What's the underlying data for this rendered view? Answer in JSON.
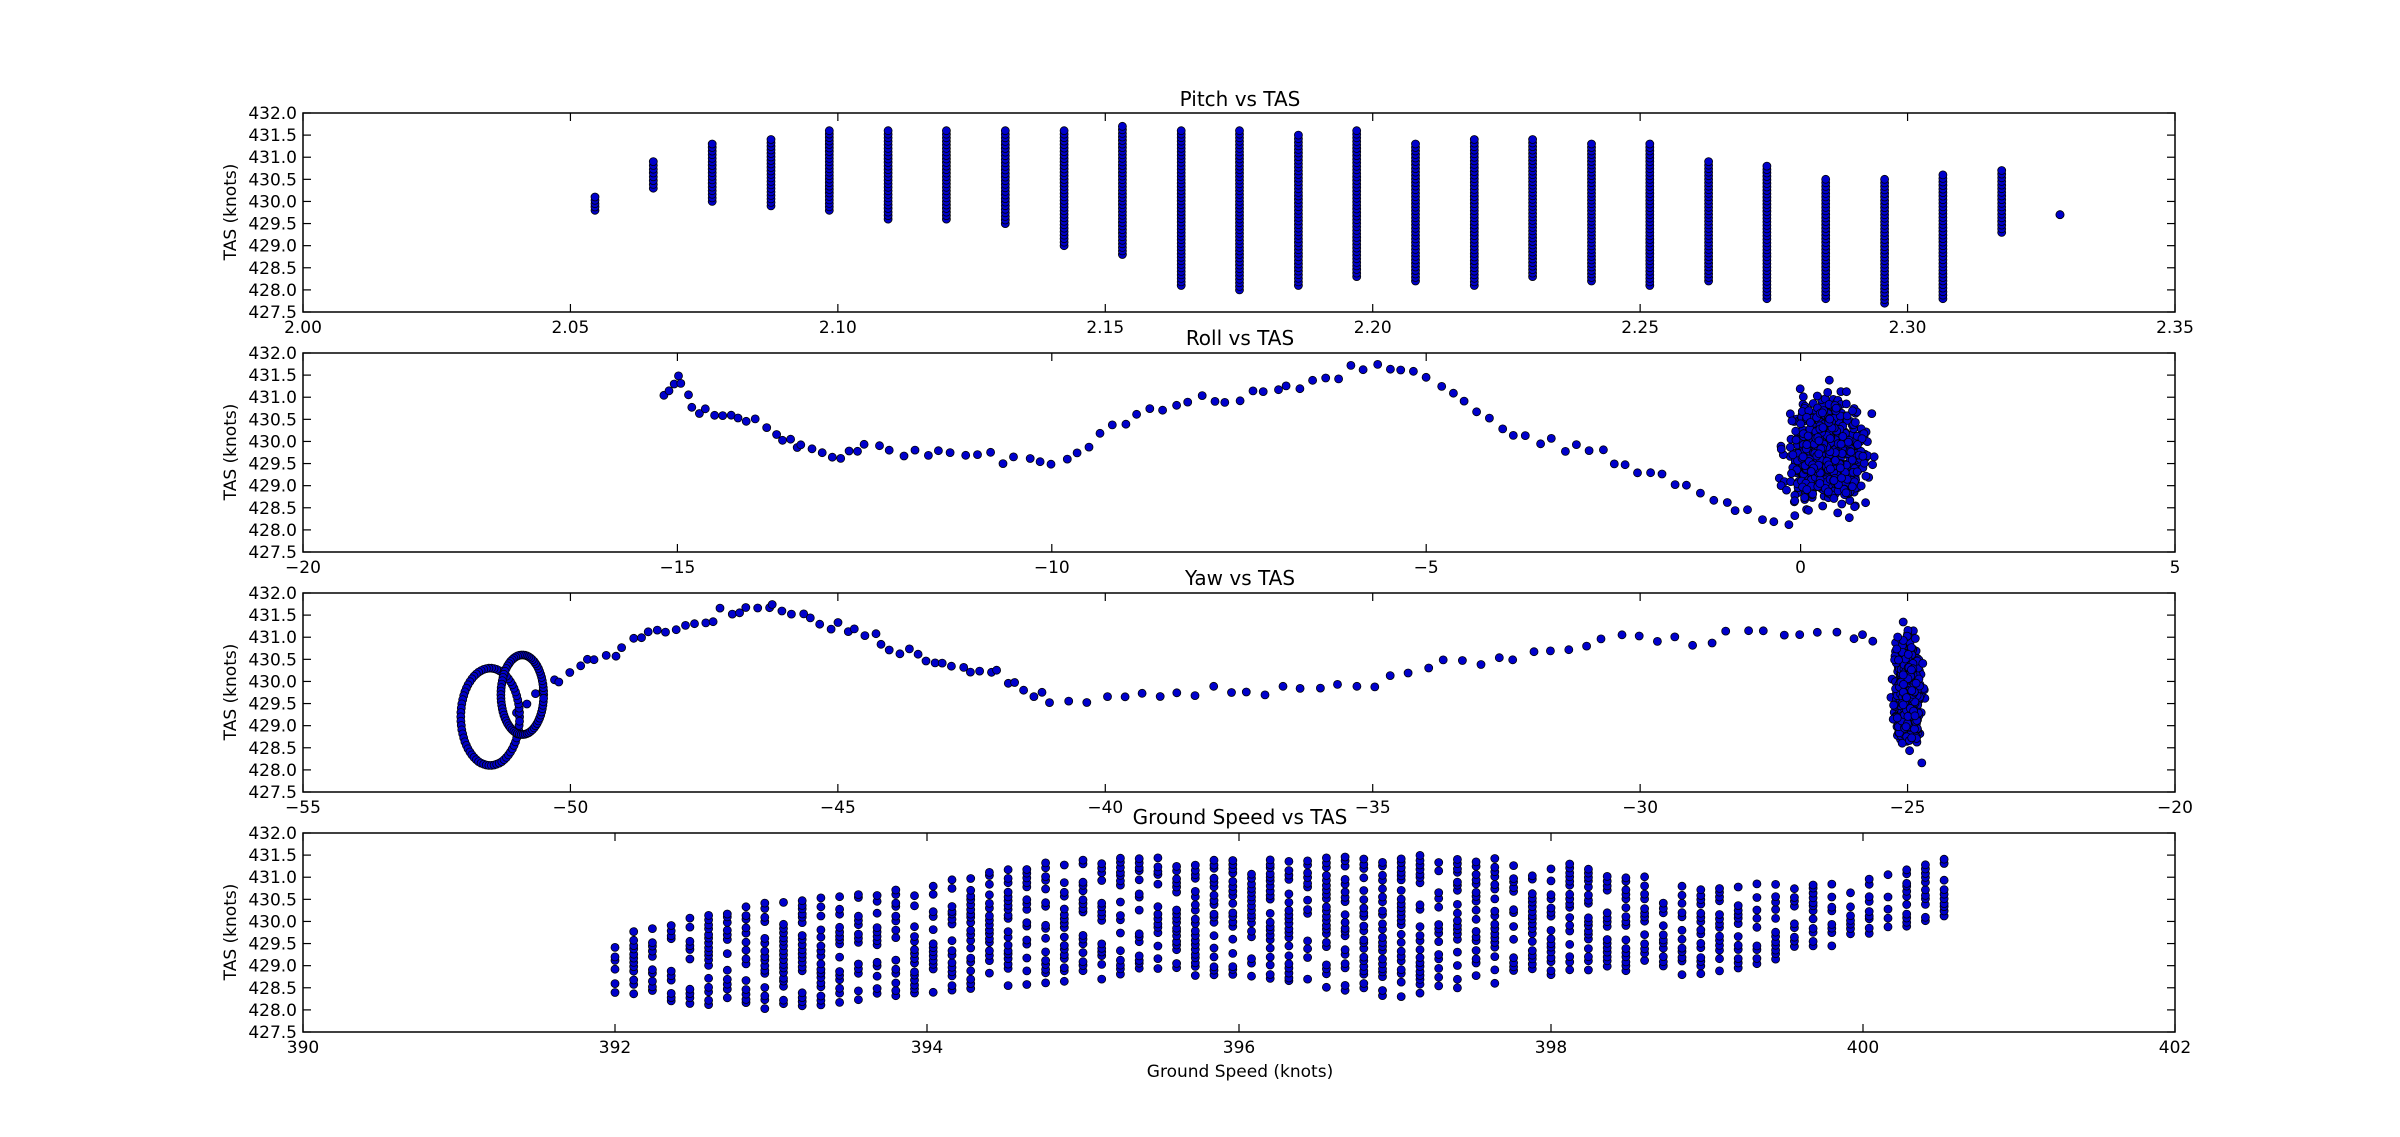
{
  "figure": {
    "background": "#ffffff",
    "marker_fill": "#0000cc",
    "marker_edge": "#000000"
  },
  "chart_data": [
    {
      "type": "scatter",
      "title": "Pitch vs TAS",
      "xlabel": "",
      "ylabel": "TAS (knots)",
      "xlim": [
        2.0,
        2.35
      ],
      "ylim": [
        427.5,
        432.0
      ],
      "xticks": [
        "2.00",
        "2.05",
        "2.10",
        "2.15",
        "2.20",
        "2.25",
        "2.30",
        "2.35"
      ],
      "yticks": [
        "427.5",
        "428.0",
        "428.5",
        "429.0",
        "429.5",
        "430.0",
        "430.5",
        "431.0",
        "431.5",
        "432.0"
      ],
      "grid": false,
      "stripes": [
        {
          "x": 2.0546,
          "ymin": 429.8,
          "ymax": 430.1
        },
        {
          "x": 2.0655,
          "ymin": 430.3,
          "ymax": 430.9
        },
        {
          "x": 2.0765,
          "ymin": 430.0,
          "ymax": 431.3
        },
        {
          "x": 2.0875,
          "ymin": 429.9,
          "ymax": 431.4
        },
        {
          "x": 2.0984,
          "ymin": 429.8,
          "ymax": 431.6
        },
        {
          "x": 2.1094,
          "ymin": 429.6,
          "ymax": 431.6
        },
        {
          "x": 2.1203,
          "ymin": 429.6,
          "ymax": 431.6
        },
        {
          "x": 2.1313,
          "ymin": 429.5,
          "ymax": 431.6
        },
        {
          "x": 2.1423,
          "ymin": 429.0,
          "ymax": 431.6
        },
        {
          "x": 2.1532,
          "ymin": 428.8,
          "ymax": 431.7
        },
        {
          "x": 2.1642,
          "ymin": 428.1,
          "ymax": 431.6
        },
        {
          "x": 2.1751,
          "ymin": 428.0,
          "ymax": 431.6
        },
        {
          "x": 2.1861,
          "ymin": 428.1,
          "ymax": 431.5
        },
        {
          "x": 2.197,
          "ymin": 428.3,
          "ymax": 431.6
        },
        {
          "x": 2.208,
          "ymin": 428.2,
          "ymax": 431.3
        },
        {
          "x": 2.219,
          "ymin": 428.1,
          "ymax": 431.4
        },
        {
          "x": 2.2299,
          "ymin": 428.3,
          "ymax": 431.4
        },
        {
          "x": 2.2409,
          "ymin": 428.2,
          "ymax": 431.3
        },
        {
          "x": 2.2518,
          "ymin": 428.1,
          "ymax": 431.3
        },
        {
          "x": 2.2628,
          "ymin": 428.2,
          "ymax": 430.9
        },
        {
          "x": 2.2737,
          "ymin": 427.8,
          "ymax": 430.8
        },
        {
          "x": 2.2847,
          "ymin": 427.8,
          "ymax": 430.5
        },
        {
          "x": 2.2957,
          "ymin": 427.7,
          "ymax": 430.5
        },
        {
          "x": 2.3066,
          "ymin": 427.8,
          "ymax": 430.6
        },
        {
          "x": 2.3176,
          "ymin": 429.3,
          "ymax": 430.7
        },
        {
          "x": 2.3285,
          "ymin": 429.7,
          "ymax": 429.7
        }
      ]
    },
    {
      "type": "scatter",
      "title": "Roll vs TAS",
      "xlabel": "",
      "ylabel": "TAS (knots)",
      "xlim": [
        -20,
        5
      ],
      "ylim": [
        427.5,
        432.0
      ],
      "xticks": [
        "−20",
        "−15",
        "−10",
        "−5",
        "0",
        "5"
      ],
      "yticks": [
        "427.5",
        "428.0",
        "428.5",
        "429.0",
        "429.5",
        "430.0",
        "430.5",
        "431.0",
        "431.5",
        "432.0"
      ],
      "grid": false,
      "path": [
        [
          -15.2,
          431.0
        ],
        [
          -15.0,
          431.5
        ],
        [
          -14.8,
          430.8
        ],
        [
          -14.5,
          430.6
        ],
        [
          -14.2,
          430.5
        ],
        [
          -13.8,
          430.3
        ],
        [
          -13.5,
          430.0
        ],
        [
          -13.2,
          429.8
        ],
        [
          -12.8,
          429.6
        ],
        [
          -12.5,
          429.9
        ],
        [
          -12.0,
          429.7
        ],
        [
          -11.5,
          429.8
        ],
        [
          -11.0,
          429.7
        ],
        [
          -10.5,
          429.6
        ],
        [
          -10.0,
          429.5
        ],
        [
          -9.5,
          430.0
        ],
        [
          -9.0,
          430.5
        ],
        [
          -8.5,
          430.7
        ],
        [
          -8.0,
          430.9
        ],
        [
          -7.5,
          431.0
        ],
        [
          -7.0,
          431.2
        ],
        [
          -6.5,
          431.3
        ],
        [
          -6.0,
          431.6
        ],
        [
          -5.5,
          431.7
        ],
        [
          -5.0,
          431.5
        ],
        [
          -4.5,
          430.8
        ],
        [
          -4.0,
          430.3
        ],
        [
          -3.5,
          430.0
        ],
        [
          -3.0,
          429.9
        ],
        [
          -2.5,
          429.6
        ],
        [
          -2.0,
          429.3
        ],
        [
          -1.5,
          429.0
        ],
        [
          -1.0,
          428.6
        ],
        [
          -0.5,
          428.3
        ],
        [
          0.0,
          428.0
        ]
      ],
      "cluster": {
        "x_range": [
          -0.5,
          1.2
        ],
        "y_range": [
          427.8,
          431.7
        ]
      }
    },
    {
      "type": "scatter",
      "title": "Yaw vs TAS",
      "xlabel": "",
      "ylabel": "TAS (knots)",
      "xlim": [
        -55,
        -20
      ],
      "ylim": [
        427.5,
        432.0
      ],
      "xticks": [
        "−55",
        "−50",
        "−45",
        "−40",
        "−35",
        "−30",
        "−25",
        "−20"
      ],
      "yticks": [
        "427.5",
        "428.0",
        "428.5",
        "429.0",
        "429.5",
        "430.0",
        "430.5",
        "431.0",
        "431.5",
        "432.0"
      ],
      "grid": false,
      "loops": [
        {
          "cx": -51.5,
          "cy": 429.2,
          "rx": 0.55,
          "ry": 1.1
        },
        {
          "cx": -50.9,
          "cy": 429.7,
          "rx": 0.4,
          "ry": 0.9
        }
      ],
      "path": [
        [
          -51.0,
          429.3
        ],
        [
          -50.5,
          429.8
        ],
        [
          -50.0,
          430.2
        ],
        [
          -49.5,
          430.5
        ],
        [
          -49.0,
          430.8
        ],
        [
          -48.5,
          431.1
        ],
        [
          -48.0,
          431.3
        ],
        [
          -47.5,
          431.4
        ],
        [
          -47.0,
          431.6
        ],
        [
          -46.5,
          431.7
        ],
        [
          -46.0,
          431.6
        ],
        [
          -45.5,
          431.4
        ],
        [
          -45.0,
          431.2
        ],
        [
          -44.5,
          431.1
        ],
        [
          -44.0,
          430.8
        ],
        [
          -43.5,
          430.6
        ],
        [
          -43.0,
          430.4
        ],
        [
          -42.5,
          430.3
        ],
        [
          -42.0,
          430.2
        ],
        [
          -41.5,
          429.8
        ],
        [
          -41.0,
          429.6
        ],
        [
          -40.0,
          429.6
        ],
        [
          -39.0,
          429.7
        ],
        [
          -38.0,
          429.8
        ],
        [
          -37.0,
          429.8
        ],
        [
          -36.0,
          429.9
        ],
        [
          -35.0,
          430.0
        ],
        [
          -34.0,
          430.3
        ],
        [
          -33.0,
          430.5
        ],
        [
          -32.0,
          430.6
        ],
        [
          -31.0,
          430.9
        ],
        [
          -30.0,
          431.0
        ],
        [
          -29.0,
          430.9
        ],
        [
          -28.0,
          431.1
        ],
        [
          -27.0,
          431.1
        ],
        [
          -26.0,
          431.0
        ],
        [
          -25.5,
          430.8
        ]
      ],
      "cluster": {
        "x_range": [
          -25.4,
          -24.6
        ],
        "y_range": [
          427.9,
          431.7
        ]
      }
    },
    {
      "type": "scatter",
      "title": "Ground Speed vs TAS",
      "xlabel": "Ground Speed (knots)",
      "ylabel": "TAS (knots)",
      "xlim": [
        390,
        402
      ],
      "ylim": [
        427.5,
        432.0
      ],
      "xticks": [
        "390",
        "392",
        "394",
        "396",
        "398",
        "400",
        "402"
      ],
      "yticks": [
        "427.5",
        "428.0",
        "428.5",
        "429.0",
        "429.5",
        "430.0",
        "430.5",
        "431.0",
        "431.5",
        "432.0"
      ],
      "grid": false,
      "stripe_spacing": 0.12,
      "x_range": [
        392.0,
        400.6
      ],
      "lower_band": [
        [
          392.0,
          428.3
        ],
        [
          393.0,
          428.0
        ],
        [
          394.0,
          428.4
        ],
        [
          395.0,
          428.7
        ],
        [
          396.0,
          428.8
        ],
        [
          397.0,
          428.3
        ],
        [
          398.0,
          428.8
        ],
        [
          399.0,
          428.8
        ],
        [
          400.0,
          429.6
        ],
        [
          400.6,
          430.2
        ]
      ],
      "upper_band": [
        [
          392.0,
          429.7
        ],
        [
          393.0,
          430.5
        ],
        [
          394.0,
          430.9
        ],
        [
          395.0,
          431.5
        ],
        [
          396.0,
          431.4
        ],
        [
          397.0,
          431.6
        ],
        [
          398.0,
          431.4
        ],
        [
          399.0,
          430.8
        ],
        [
          400.0,
          431.0
        ],
        [
          400.6,
          431.6
        ]
      ]
    }
  ]
}
